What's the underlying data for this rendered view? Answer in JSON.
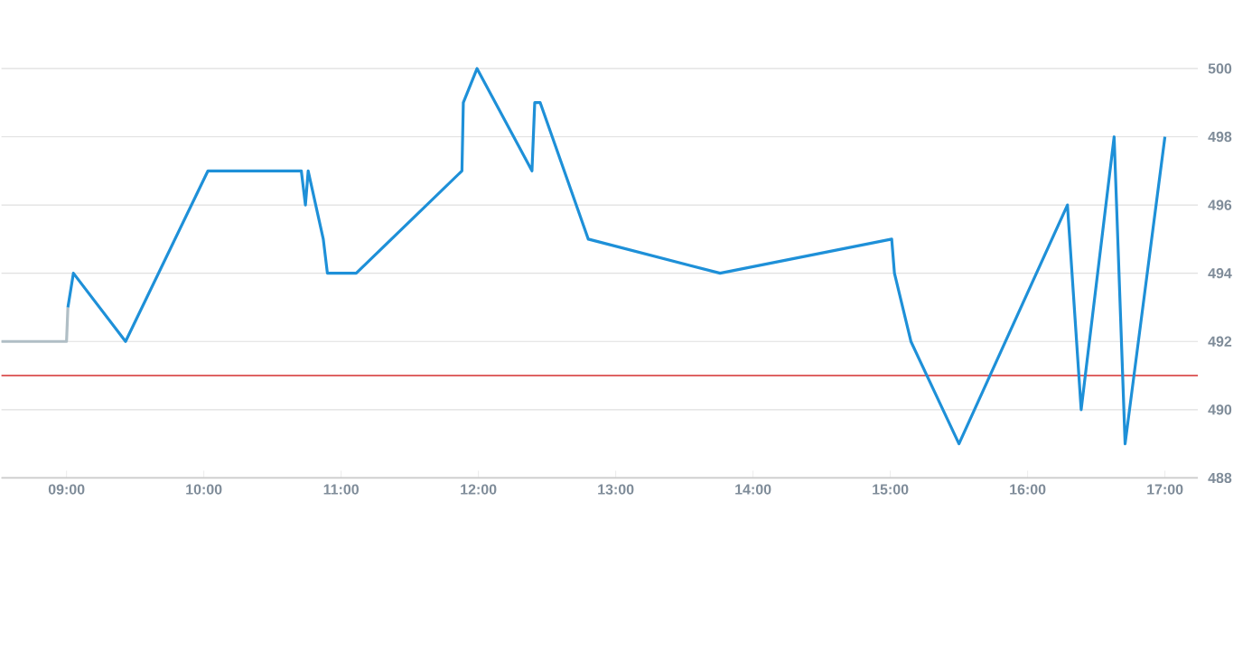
{
  "chart_data": {
    "type": "line",
    "xlim": [
      8.526,
      17.24
    ],
    "ylim": [
      488,
      500
    ],
    "xticks": [
      {
        "value": 9,
        "label": "09:00"
      },
      {
        "value": 10,
        "label": "10:00"
      },
      {
        "value": 11,
        "label": "11:00"
      },
      {
        "value": 12,
        "label": "12:00"
      },
      {
        "value": 13,
        "label": "13:00"
      },
      {
        "value": 14,
        "label": "14:00"
      },
      {
        "value": 15,
        "label": "15:00"
      },
      {
        "value": 16,
        "label": "16:00"
      },
      {
        "value": 17,
        "label": "17:00"
      }
    ],
    "yticks": [
      488,
      490,
      492,
      494,
      496,
      498,
      500
    ],
    "grid": "y",
    "marker": "none",
    "line_style": "solid",
    "ref_lines": [
      {
        "axis": "y",
        "value": 491,
        "color": "#d32f2f"
      }
    ],
    "series": [
      {
        "color": "#b0bec5",
        "x": [
          8.526,
          9.0,
          9.01
        ],
        "values": [
          492,
          492,
          493
        ]
      },
      {
        "color": "#1e90d8",
        "x": [
          9.01,
          9.05,
          9.43,
          10.03,
          10.71,
          10.74,
          10.76,
          10.87,
          10.9,
          11.11,
          11.88,
          11.89,
          11.99,
          12.39,
          12.41,
          12.45,
          12.8,
          13.76,
          15.01,
          15.03,
          15.15,
          15.5,
          16.29,
          16.39,
          16.63,
          16.71,
          17.0
        ],
        "values": [
          493,
          494,
          492,
          497,
          497,
          496,
          497,
          495,
          494,
          494,
          497,
          499,
          500,
          497,
          499,
          499,
          495,
          494,
          495,
          494,
          492,
          489,
          496,
          490,
          498,
          489,
          498
        ]
      }
    ]
  }
}
